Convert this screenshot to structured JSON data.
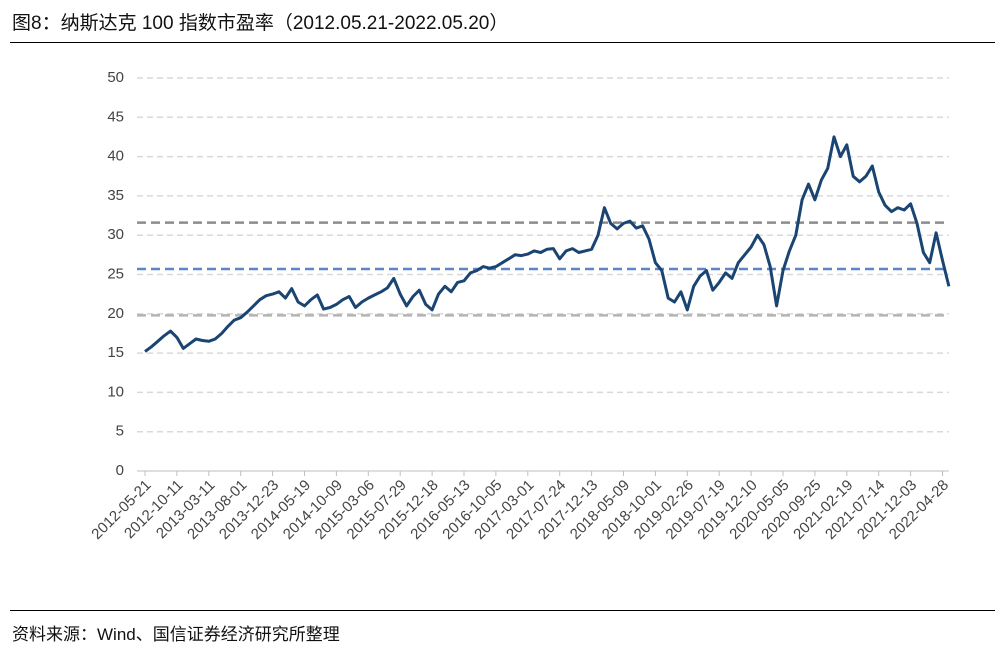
{
  "chart_data": {
    "type": "line",
    "title": "图8：纳斯达克 100 指数市盈率（2012.05.21-2022.05.20）",
    "source": "资料来源：Wind、国信证券经济研究所整理",
    "categories": [
      "2012-05-21",
      null,
      null,
      null,
      null,
      "2012-10-11",
      null,
      null,
      null,
      null,
      "2013-03-11",
      null,
      null,
      null,
      null,
      "2013-08-01",
      null,
      null,
      null,
      null,
      "2013-12-23",
      null,
      null,
      null,
      null,
      "2014-05-19",
      null,
      null,
      null,
      null,
      "2014-10-09",
      null,
      null,
      null,
      null,
      "2015-03-06",
      null,
      null,
      null,
      null,
      "2015-07-29",
      null,
      null,
      null,
      null,
      "2015-12-18",
      null,
      null,
      null,
      null,
      "2016-05-13",
      null,
      null,
      null,
      null,
      "2016-10-05",
      null,
      null,
      null,
      null,
      "2017-03-01",
      null,
      null,
      null,
      null,
      "2017-07-24",
      null,
      null,
      null,
      null,
      "2017-12-13",
      null,
      null,
      null,
      null,
      "2018-05-09",
      null,
      null,
      null,
      null,
      "2018-10-01",
      null,
      null,
      null,
      null,
      "2019-02-26",
      null,
      null,
      null,
      null,
      "2019-07-19",
      null,
      null,
      null,
      null,
      "2019-12-10",
      null,
      null,
      null,
      null,
      "2020-05-05",
      null,
      null,
      null,
      null,
      "2020-09-25",
      null,
      null,
      null,
      null,
      "2021-02-19",
      null,
      null,
      null,
      null,
      "2021-07-14",
      null,
      null,
      null,
      null,
      "2021-12-03",
      null,
      null,
      null,
      null,
      "2022-04-28",
      null
    ],
    "series": [
      {
        "color": "#1a4472",
        "values": [
          15.2,
          15.8,
          16.5,
          17.2,
          17.8,
          17.0,
          15.6,
          16.2,
          16.8,
          16.6,
          16.5,
          16.8,
          17.5,
          18.4,
          19.2,
          19.5,
          20.2,
          21.0,
          21.8,
          22.3,
          22.5,
          22.8,
          22.0,
          23.2,
          21.5,
          21.0,
          21.8,
          22.4,
          20.6,
          20.8,
          21.2,
          21.8,
          22.2,
          20.8,
          21.5,
          22.0,
          22.4,
          22.8,
          23.3,
          24.5,
          22.5,
          21.0,
          22.2,
          23.0,
          21.2,
          20.5,
          22.5,
          23.5,
          22.8,
          24.0,
          24.2,
          25.2,
          25.5,
          26.0,
          25.8,
          26.0,
          26.5,
          27.0,
          27.5,
          27.4,
          27.6,
          28.0,
          27.8,
          28.2,
          28.3,
          27.0,
          28.0,
          28.3,
          27.8,
          28.0,
          28.2,
          30.0,
          33.5,
          31.5,
          30.8,
          31.5,
          31.8,
          30.9,
          31.2,
          29.5,
          26.5,
          25.5,
          22.0,
          21.5,
          22.8,
          20.5,
          23.5,
          24.8,
          25.5,
          23.0,
          24.0,
          25.2,
          24.5,
          26.5,
          27.5,
          28.5,
          30.0,
          28.8,
          26.0,
          21.0,
          25.5,
          28.0,
          30.0,
          34.5,
          36.5,
          34.5,
          37.0,
          38.5,
          42.5,
          40.0,
          41.5,
          37.5,
          36.8,
          37.5,
          38.8,
          35.5,
          33.8,
          33.0,
          33.5,
          33.2,
          34.0,
          31.5,
          27.8,
          26.5,
          30.3,
          26.8,
          23.5
        ]
      }
    ],
    "hlines": [
      {
        "value": 31.6,
        "color": "#8c8c8c"
      },
      {
        "value": 25.7,
        "color": "#5b86c8"
      },
      {
        "value": 19.8,
        "color": "#b4b4b4"
      }
    ],
    "ylim": [
      0,
      50
    ],
    "yticks": [
      0,
      5,
      10,
      15,
      20,
      25,
      30,
      35,
      40,
      45,
      50
    ],
    "grid": true
  }
}
